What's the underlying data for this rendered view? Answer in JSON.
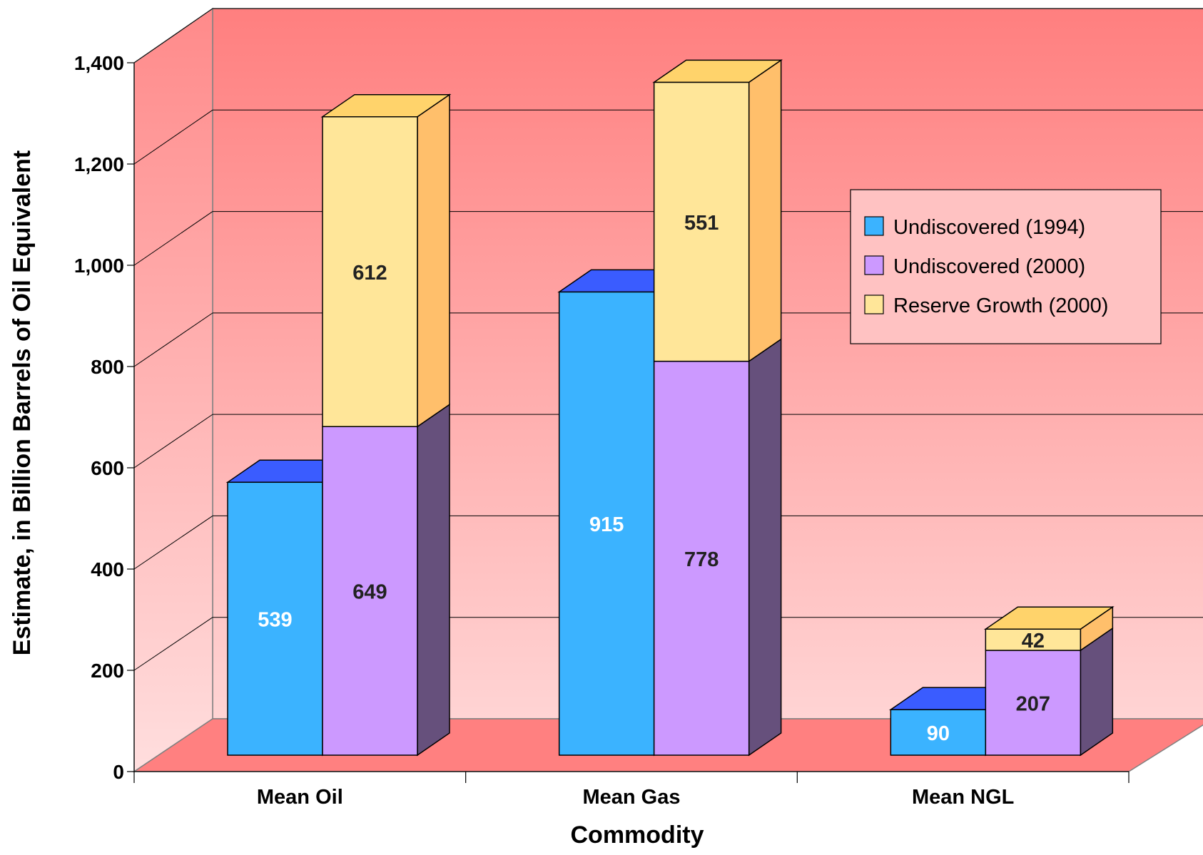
{
  "chart_data": {
    "type": "bar",
    "stacked": true,
    "three_d": true,
    "xlabel": "Commodity",
    "ylabel": "Estimate, in Billion Barrels of Oil Equivalent",
    "ylim": [
      0,
      1400
    ],
    "yticks": [
      "0",
      "200",
      "400",
      "600",
      "800",
      "1,000",
      "1,200",
      "1,400"
    ],
    "categories": [
      "Mean Oil",
      "Mean Gas",
      "Mean NGL"
    ],
    "series": [
      {
        "name": "Undiscovered (1994)",
        "color": "#3bb3ff",
        "top_color": "#3a5cff",
        "side_color": "#2a6fb0",
        "label_color": "#ffffff",
        "stack": "A",
        "values": [
          539,
          915,
          90
        ]
      },
      {
        "name": "Undiscovered (2000)",
        "color": "#cc99ff",
        "top_color": "#cc99ff",
        "side_color": "#66507c",
        "label_color": "#222222",
        "stack": "B",
        "values": [
          649,
          778,
          207
        ]
      },
      {
        "name": "Reserve Growth (2000)",
        "color": "#ffe699",
        "top_color": "#ffd36b",
        "side_color": "#ffbf6b",
        "label_color": "#222222",
        "stack": "B",
        "values": [
          612,
          551,
          42
        ]
      }
    ],
    "legend": {
      "position": "right"
    },
    "grid": true,
    "back_wall_color": "#ff7f7f",
    "floor_color": "#ff8080"
  }
}
